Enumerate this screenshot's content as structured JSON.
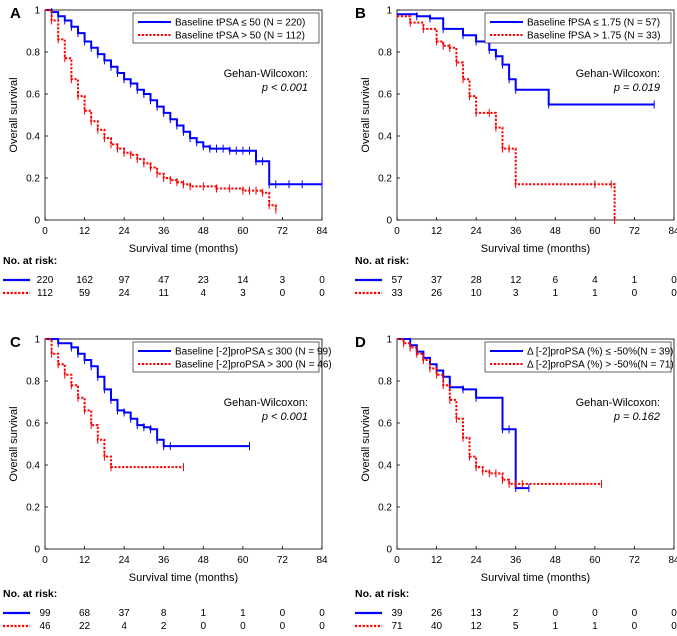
{
  "figure": {
    "ylabel": "Overall survival",
    "xlabel": "Survival time (months)",
    "risk_title": "No. at risk:",
    "colors": {
      "blue": "#0000ff",
      "red": "#ff0000"
    }
  },
  "chart_data": [
    {
      "panel": "A",
      "type": "line",
      "subtype": "kaplan-meier",
      "xlabel": "Survival time (months)",
      "ylabel": "Overall survival",
      "xlim": [
        0,
        84
      ],
      "ylim": [
        0,
        1
      ],
      "xticks": [
        0,
        12,
        24,
        36,
        48,
        60,
        72,
        84
      ],
      "yticks": [
        0,
        0.2,
        0.4,
        0.6,
        0.8,
        1
      ],
      "legend": [
        "Baseline tPSA ≤ 50 (N = 220)",
        "Baseline tPSA > 50 (N = 112)"
      ],
      "annotation": {
        "title": "Gehan-Wilcoxon:",
        "p": "p < 0.001"
      },
      "series": [
        {
          "name": "Baseline tPSA ≤ 50 (N = 220)",
          "color": "blue",
          "style": "solid",
          "x": [
            0,
            2,
            4,
            6,
            8,
            10,
            12,
            14,
            16,
            18,
            20,
            22,
            24,
            26,
            28,
            30,
            32,
            34,
            36,
            38,
            40,
            42,
            44,
            46,
            48,
            50,
            52,
            54,
            56,
            58,
            60,
            62,
            64,
            66,
            68,
            70,
            74,
            78,
            84
          ],
          "y": [
            1.0,
            0.99,
            0.97,
            0.95,
            0.92,
            0.89,
            0.85,
            0.82,
            0.79,
            0.76,
            0.73,
            0.7,
            0.67,
            0.65,
            0.62,
            0.6,
            0.57,
            0.54,
            0.51,
            0.48,
            0.45,
            0.42,
            0.39,
            0.37,
            0.35,
            0.34,
            0.34,
            0.34,
            0.33,
            0.33,
            0.33,
            0.33,
            0.28,
            0.28,
            0.17,
            0.17,
            0.17,
            0.17,
            0.17
          ]
        },
        {
          "name": "Baseline tPSA > 50 (N = 112)",
          "color": "red",
          "style": "dotted",
          "x": [
            0,
            2,
            4,
            6,
            8,
            10,
            12,
            14,
            16,
            18,
            20,
            22,
            24,
            26,
            28,
            30,
            32,
            34,
            36,
            38,
            40,
            42,
            44,
            48,
            52,
            56,
            60,
            62,
            64,
            66,
            68,
            70
          ],
          "y": [
            1.0,
            0.95,
            0.86,
            0.77,
            0.67,
            0.59,
            0.52,
            0.47,
            0.43,
            0.39,
            0.36,
            0.34,
            0.32,
            0.31,
            0.29,
            0.27,
            0.25,
            0.22,
            0.2,
            0.19,
            0.18,
            0.17,
            0.16,
            0.16,
            0.15,
            0.15,
            0.14,
            0.14,
            0.14,
            0.13,
            0.07,
            0.05
          ]
        }
      ],
      "risk_table": [
        {
          "series": "Baseline tPSA ≤ 50",
          "counts": [
            220,
            162,
            97,
            47,
            23,
            14,
            3,
            0
          ]
        },
        {
          "series": "Baseline tPSA > 50",
          "counts": [
            112,
            59,
            24,
            11,
            4,
            3,
            0,
            0
          ]
        }
      ]
    },
    {
      "panel": "B",
      "type": "line",
      "subtype": "kaplan-meier",
      "xlabel": "Survival time (months)",
      "ylabel": "Overall survival",
      "xlim": [
        0,
        84
      ],
      "ylim": [
        0,
        1
      ],
      "xticks": [
        0,
        12,
        24,
        36,
        48,
        60,
        72,
        84
      ],
      "yticks": [
        0,
        0.2,
        0.4,
        0.6,
        0.8,
        1
      ],
      "legend": [
        "Baseline fPSA ≤ 1.75 (N = 57)",
        "Baseline fPSA > 1.75 (N = 33)"
      ],
      "annotation": {
        "title": "Gehan-Wilcoxon:",
        "p": "p = 0.019"
      },
      "series": [
        {
          "name": "Baseline fPSA ≤ 1.75 (N = 57)",
          "color": "blue",
          "style": "solid",
          "x": [
            0,
            6,
            10,
            14,
            20,
            24,
            28,
            30,
            32,
            34,
            36,
            46,
            78
          ],
          "y": [
            0.98,
            0.97,
            0.96,
            0.91,
            0.88,
            0.85,
            0.81,
            0.78,
            0.74,
            0.67,
            0.62,
            0.55,
            0.55
          ]
        },
        {
          "name": "Baseline fPSA > 1.75 (N = 33)",
          "color": "red",
          "style": "dotted",
          "x": [
            0,
            4,
            8,
            12,
            14,
            16,
            18,
            20,
            22,
            24,
            28,
            30,
            32,
            34,
            36,
            60,
            65,
            66
          ],
          "y": [
            0.97,
            0.94,
            0.91,
            0.85,
            0.83,
            0.82,
            0.75,
            0.67,
            0.59,
            0.51,
            0.51,
            0.44,
            0.34,
            0.34,
            0.17,
            0.17,
            0.17,
            0
          ]
        }
      ],
      "risk_table": [
        {
          "series": "Baseline fPSA ≤ 1.75",
          "counts": [
            57,
            37,
            28,
            12,
            6,
            4,
            1,
            0
          ]
        },
        {
          "series": "Baseline fPSA > 1.75",
          "counts": [
            33,
            26,
            10,
            3,
            1,
            1,
            0,
            0
          ]
        }
      ]
    },
    {
      "panel": "C",
      "type": "line",
      "subtype": "kaplan-meier",
      "xlabel": "Survival time (months)",
      "ylabel": "Overall survival",
      "xlim": [
        0,
        84
      ],
      "ylim": [
        0,
        1
      ],
      "xticks": [
        0,
        12,
        24,
        36,
        48,
        60,
        72,
        84
      ],
      "yticks": [
        0,
        0.2,
        0.4,
        0.6,
        0.8,
        1
      ],
      "legend": [
        "Baseline [-2]proPSA ≤ 300 (N = 99)",
        "Baseline [-2]proPSA > 300 (N = 46)"
      ],
      "annotation": {
        "title": "Gehan-Wilcoxon:",
        "p": "p < 0.001"
      },
      "series": [
        {
          "name": "Baseline [-2]proPSA ≤ 300 (N = 99)",
          "color": "blue",
          "style": "solid",
          "x": [
            0,
            4,
            8,
            10,
            12,
            14,
            16,
            18,
            20,
            22,
            24,
            26,
            28,
            30,
            32,
            34,
            36,
            38,
            62
          ],
          "y": [
            1.0,
            0.98,
            0.96,
            0.93,
            0.9,
            0.87,
            0.82,
            0.76,
            0.71,
            0.66,
            0.65,
            0.62,
            0.59,
            0.58,
            0.57,
            0.52,
            0.49,
            0.49,
            0.49
          ]
        },
        {
          "name": "Baseline [-2]proPSA > 300 (N = 46)",
          "color": "red",
          "style": "dotted",
          "x": [
            0,
            2,
            4,
            6,
            8,
            10,
            12,
            14,
            16,
            18,
            20,
            42
          ],
          "y": [
            1.0,
            0.93,
            0.88,
            0.83,
            0.78,
            0.72,
            0.66,
            0.59,
            0.52,
            0.44,
            0.39,
            0.39
          ]
        }
      ],
      "risk_table": [
        {
          "series": "Baseline [-2]proPSA ≤ 300",
          "counts": [
            99,
            68,
            37,
            8,
            1,
            1,
            0,
            0
          ]
        },
        {
          "series": "Baseline [-2]proPSA > 300",
          "counts": [
            46,
            22,
            4,
            2,
            0,
            0,
            0,
            0
          ]
        }
      ]
    },
    {
      "panel": "D",
      "type": "line",
      "subtype": "kaplan-meier",
      "xlabel": "Survival time (months)",
      "ylabel": "Overall survival",
      "xlim": [
        0,
        84
      ],
      "ylim": [
        0,
        1
      ],
      "xticks": [
        0,
        12,
        24,
        36,
        48,
        60,
        72,
        84
      ],
      "yticks": [
        0,
        0.2,
        0.4,
        0.6,
        0.8,
        1
      ],
      "legend": [
        "Δ [-2]proPSA (%) ≤ -50%(N = 39)",
        "Δ [-2]proPSA (%) > -50%(N = 71)"
      ],
      "annotation": {
        "title": "Gehan-Wilcoxon:",
        "p": "p = 0.162"
      },
      "series": [
        {
          "name": "Δ [-2]proPSA (%) ≤ -50%(N = 39)",
          "color": "blue",
          "style": "solid",
          "x": [
            0,
            4,
            6,
            8,
            10,
            12,
            14,
            16,
            20,
            24,
            32,
            34,
            36,
            40
          ],
          "y": [
            1.0,
            0.97,
            0.94,
            0.91,
            0.88,
            0.85,
            0.82,
            0.77,
            0.76,
            0.72,
            0.57,
            0.57,
            0.29,
            0.29
          ]
        },
        {
          "name": "Δ [-2]proPSA (%) > -50%(N = 71)",
          "color": "red",
          "style": "dotted",
          "x": [
            0,
            2,
            4,
            6,
            8,
            10,
            12,
            14,
            16,
            18,
            20,
            22,
            24,
            26,
            28,
            30,
            32,
            34,
            36,
            38,
            62
          ],
          "y": [
            1.0,
            0.98,
            0.96,
            0.93,
            0.9,
            0.86,
            0.83,
            0.78,
            0.71,
            0.62,
            0.53,
            0.44,
            0.39,
            0.37,
            0.36,
            0.36,
            0.33,
            0.31,
            0.31,
            0.31,
            0.31
          ]
        }
      ],
      "risk_table": [
        {
          "series": "Δ [-2]proPSA (%) ≤ -50%",
          "counts": [
            39,
            26,
            13,
            2,
            0,
            0,
            0,
            0
          ]
        },
        {
          "series": "Δ [-2]proPSA (%) > -50%",
          "counts": [
            71,
            40,
            12,
            5,
            1,
            1,
            0,
            0
          ]
        }
      ]
    }
  ]
}
